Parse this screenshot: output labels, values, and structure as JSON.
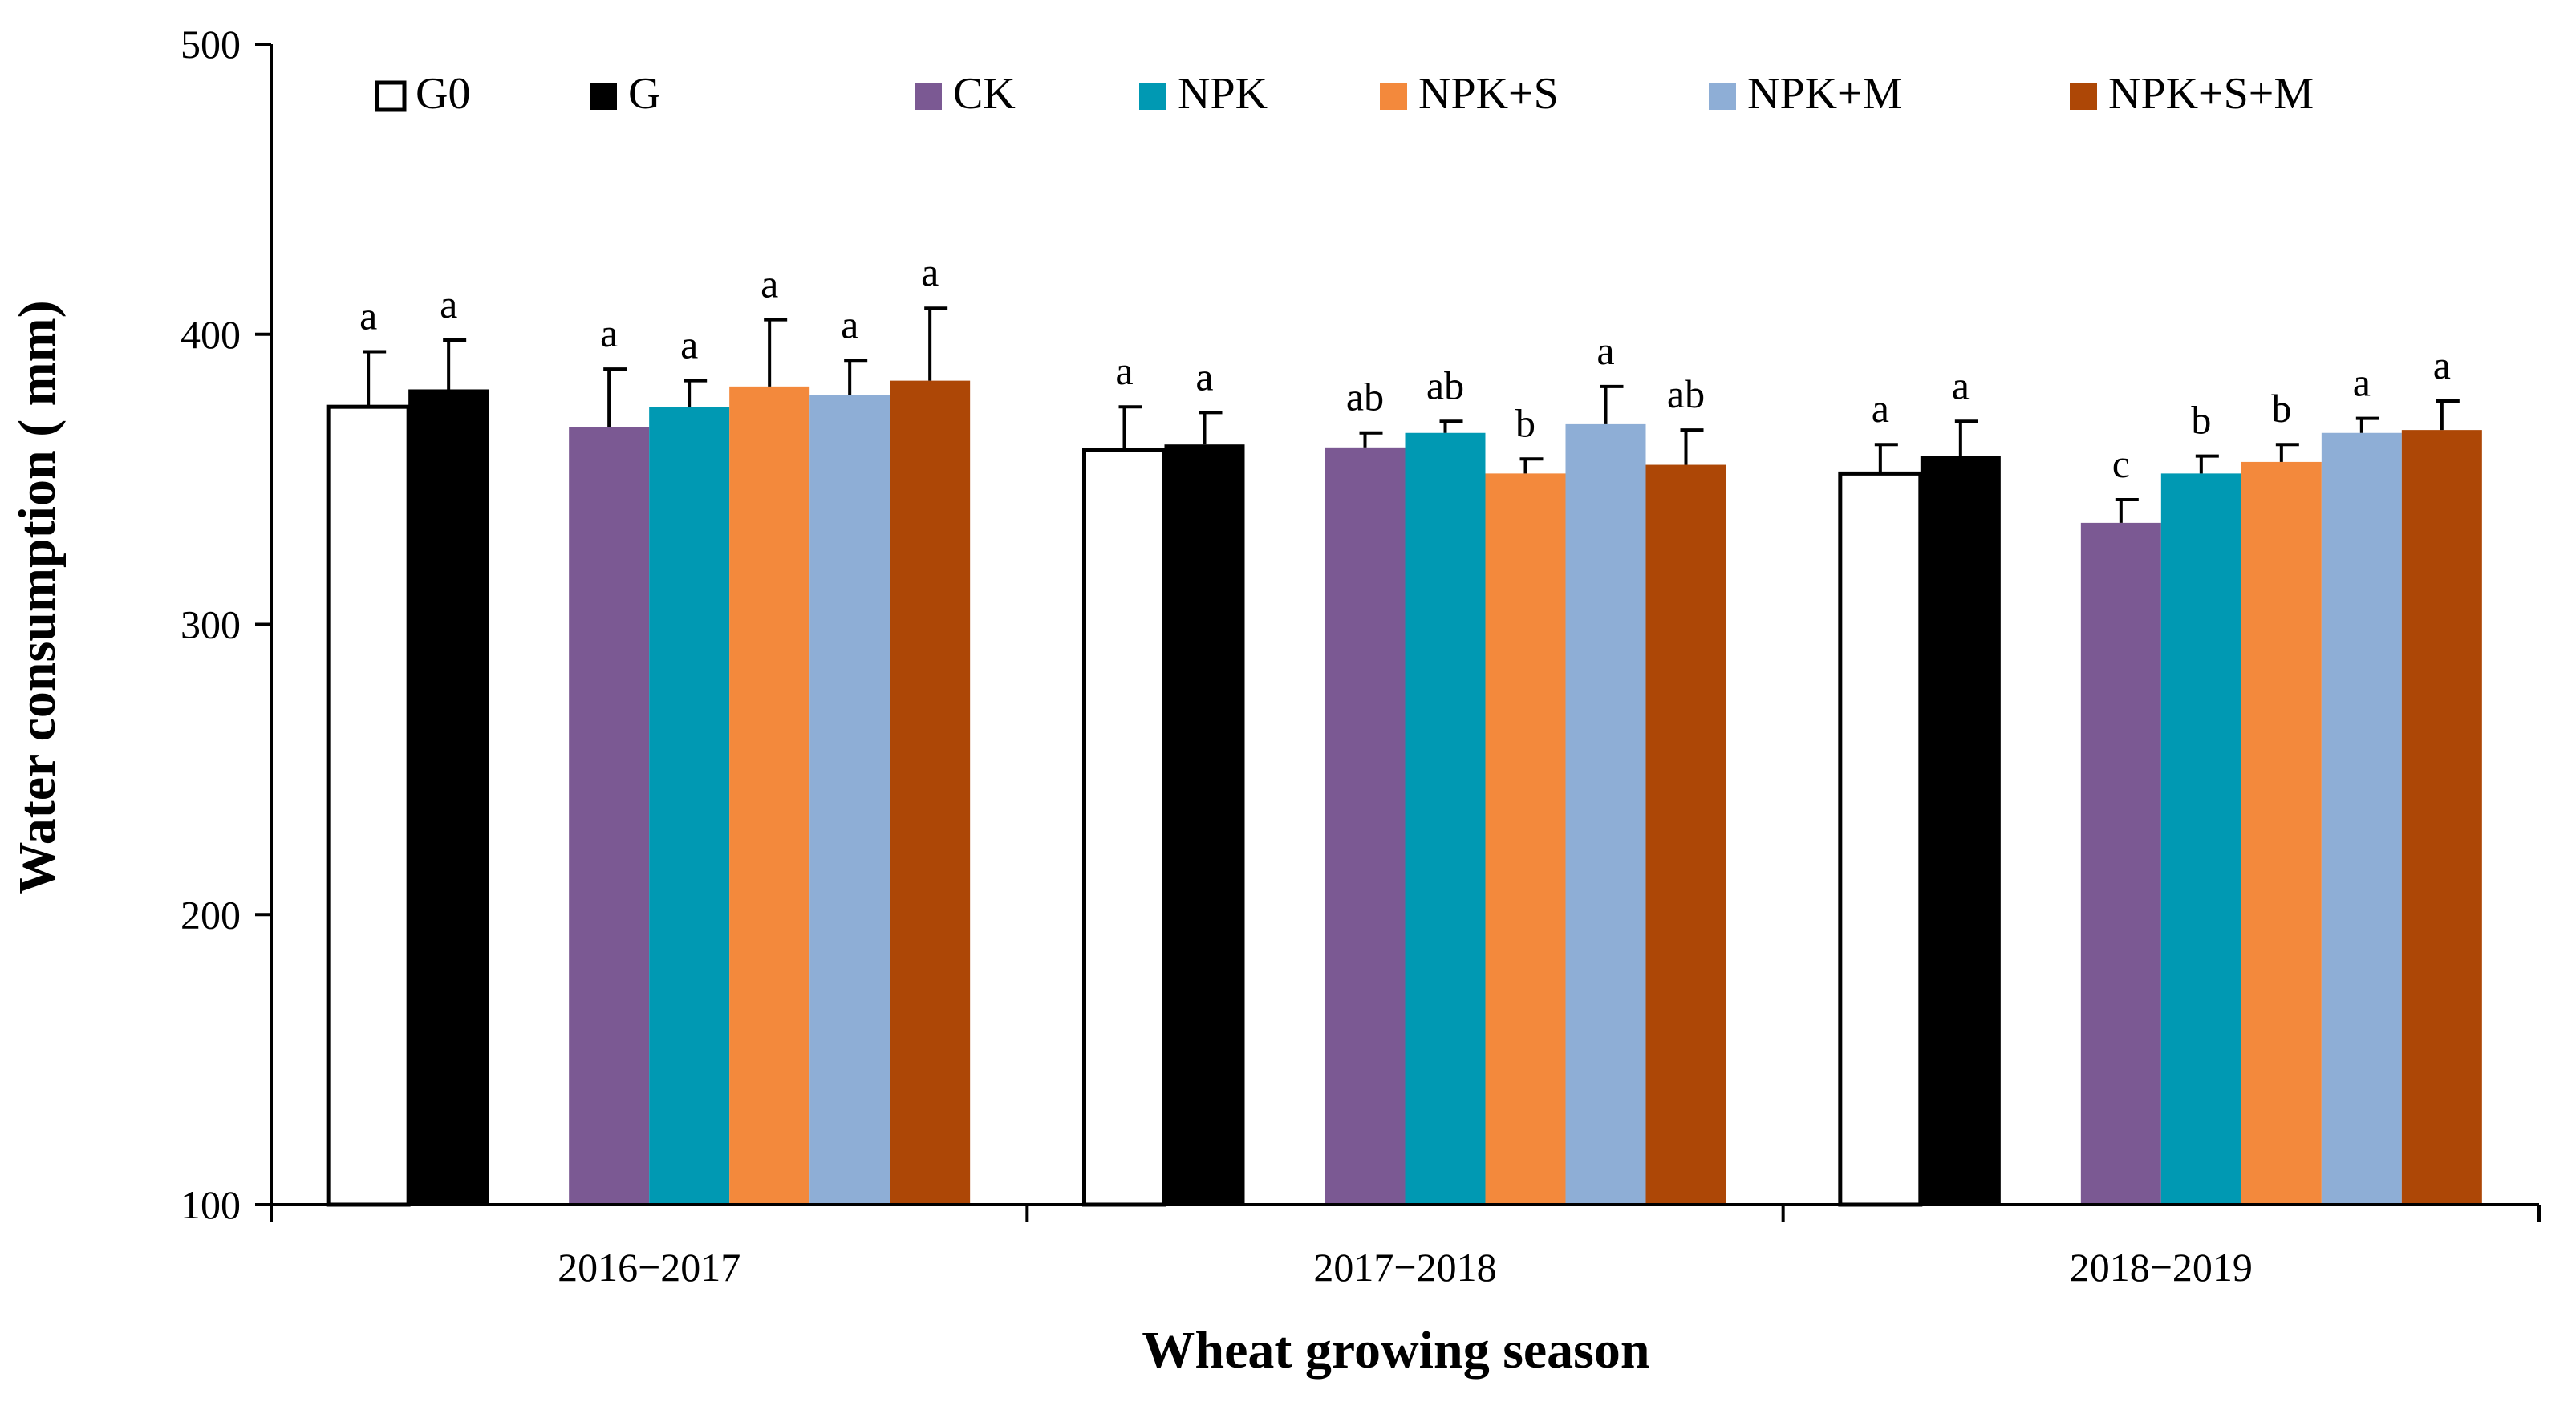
{
  "chart_data": {
    "type": "bar",
    "title": "",
    "xlabel": "Wheat growing season",
    "ylabel": "Water consumption ( mm)",
    "ylim": [
      100,
      500
    ],
    "yticks": [
      "100",
      "200",
      "300",
      "400",
      "500"
    ],
    "categories": [
      "2016−2017",
      "2017−2018",
      "2018−2019"
    ],
    "series": [
      {
        "name": "G0",
        "color": "#ffffff",
        "values": [
          375,
          360,
          352
        ],
        "errors": [
          19,
          15,
          10
        ],
        "labels": [
          "a",
          "a",
          "a"
        ]
      },
      {
        "name": "G",
        "color": "#000000",
        "values": [
          381,
          362,
          358
        ],
        "errors": [
          17,
          11,
          12
        ],
        "labels": [
          "a",
          "a",
          "a"
        ]
      },
      {
        "name": "CK",
        "color": "#7b5993",
        "values": [
          368,
          361,
          335
        ],
        "errors": [
          20,
          5,
          8
        ],
        "labels": [
          "a",
          "ab",
          "c"
        ]
      },
      {
        "name": "NPK",
        "color": "#0099b3",
        "values": [
          375,
          366,
          352
        ],
        "errors": [
          9,
          4,
          6
        ],
        "labels": [
          "a",
          "ab",
          "b"
        ]
      },
      {
        "name": "NPK+S",
        "color": "#f3893c",
        "values": [
          382,
          352,
          356
        ],
        "errors": [
          23,
          5,
          6
        ],
        "labels": [
          "a",
          "b",
          "b"
        ]
      },
      {
        "name": "NPK+M",
        "color": "#8eaed6",
        "values": [
          379,
          369,
          366
        ],
        "errors": [
          12,
          13,
          5
        ],
        "labels": [
          "a",
          "a",
          "a"
        ]
      },
      {
        "name": "NPK+S+M",
        "color": "#ad4706",
        "values": [
          384,
          355,
          367
        ],
        "errors": [
          25,
          12,
          10
        ],
        "labels": [
          "a",
          "ab",
          "a"
        ]
      }
    ],
    "legend_position": "top"
  }
}
